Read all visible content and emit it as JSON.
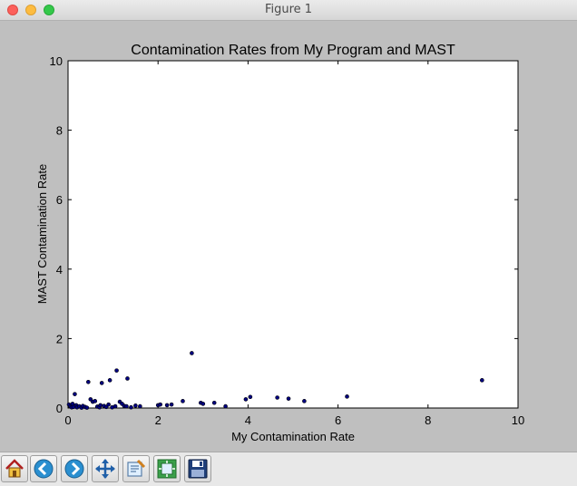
{
  "window": {
    "title": "Figure 1"
  },
  "chart_data": {
    "type": "scatter",
    "title": "Contamination Rates from My Program and MAST",
    "xlabel": "My Contamination Rate",
    "ylabel": "MAST Contamination Rate",
    "xlim": [
      0,
      10
    ],
    "ylim": [
      0,
      10
    ],
    "xticks": [
      0,
      2,
      4,
      6,
      8,
      10
    ],
    "yticks": [
      0,
      2,
      4,
      6,
      8,
      10
    ],
    "grid": false,
    "marker_color": "#000080",
    "points": [
      [
        0.02,
        0.1
      ],
      [
        0.05,
        0.05
      ],
      [
        0.08,
        0.02
      ],
      [
        0.1,
        0.12
      ],
      [
        0.12,
        0.03
      ],
      [
        0.15,
        0.4
      ],
      [
        0.18,
        0.08
      ],
      [
        0.2,
        0.02
      ],
      [
        0.25,
        0.05
      ],
      [
        0.3,
        0.01
      ],
      [
        0.33,
        0.06
      ],
      [
        0.38,
        0.03
      ],
      [
        0.42,
        0.01
      ],
      [
        0.45,
        0.75
      ],
      [
        0.5,
        0.25
      ],
      [
        0.55,
        0.18
      ],
      [
        0.6,
        0.2
      ],
      [
        0.65,
        0.04
      ],
      [
        0.7,
        0.02
      ],
      [
        0.72,
        0.08
      ],
      [
        0.75,
        0.72
      ],
      [
        0.8,
        0.06
      ],
      [
        0.85,
        0.03
      ],
      [
        0.9,
        0.1
      ],
      [
        0.93,
        0.8
      ],
      [
        0.98,
        0.02
      ],
      [
        1.05,
        0.05
      ],
      [
        1.08,
        1.08
      ],
      [
        1.15,
        0.18
      ],
      [
        1.2,
        0.12
      ],
      [
        1.25,
        0.06
      ],
      [
        1.3,
        0.05
      ],
      [
        1.32,
        0.85
      ],
      [
        1.4,
        0.02
      ],
      [
        1.5,
        0.07
      ],
      [
        1.6,
        0.05
      ],
      [
        2.0,
        0.08
      ],
      [
        2.05,
        0.1
      ],
      [
        2.2,
        0.08
      ],
      [
        2.3,
        0.1
      ],
      [
        2.55,
        0.2
      ],
      [
        2.75,
        1.58
      ],
      [
        2.95,
        0.15
      ],
      [
        3.0,
        0.12
      ],
      [
        3.25,
        0.15
      ],
      [
        3.5,
        0.05
      ],
      [
        3.95,
        0.25
      ],
      [
        4.05,
        0.32
      ],
      [
        4.65,
        0.3
      ],
      [
        4.9,
        0.27
      ],
      [
        5.25,
        0.2
      ],
      [
        6.2,
        0.33
      ],
      [
        9.2,
        0.8
      ]
    ]
  },
  "toolbar": {
    "buttons": [
      {
        "name": "home-icon"
      },
      {
        "name": "back-icon"
      },
      {
        "name": "forward-icon"
      },
      {
        "name": "pan-icon"
      },
      {
        "name": "zoom-rect-icon"
      },
      {
        "name": "subplots-icon"
      },
      {
        "name": "save-icon"
      }
    ]
  }
}
